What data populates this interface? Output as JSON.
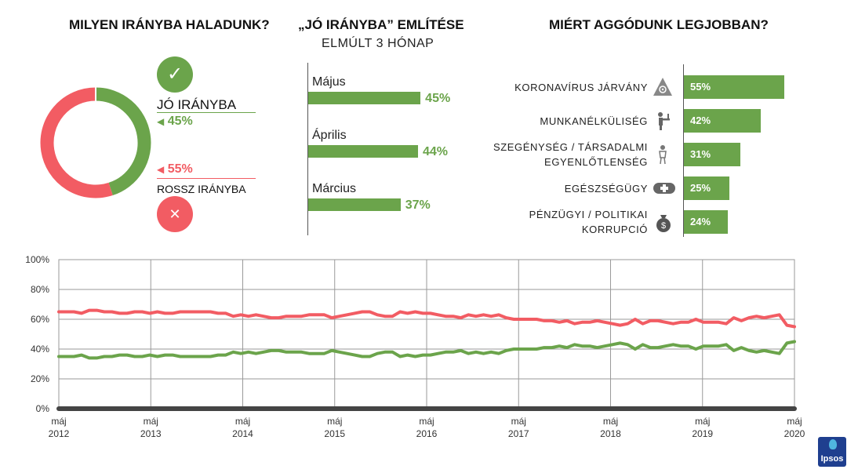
{
  "colors": {
    "green": "#6ba44b",
    "red": "#f25c63",
    "gray": "#8c8c8c"
  },
  "panel1": {
    "title": "MILYEN IRÁNYBA HALADUNK?",
    "good_label": "JÓ IRÁNYBA",
    "good_value": "45%",
    "bad_value": "55%",
    "bad_label": "ROSSZ IRÁNYBA",
    "check_icon": "✓",
    "x_icon": "✕"
  },
  "panel2": {
    "title": "„JÓ IRÁNYBA” EMLÍTÉSE",
    "subtitle": "ELMÚLT 3 HÓNAP"
  },
  "panel3": {
    "title": "MIÉRT AGGÓDUNK LEGJOBBAN?"
  },
  "footer": {
    "logo": "Ipsos"
  },
  "chart_data": [
    {
      "type": "pie",
      "title": "MILYEN IRÁNYBA HALADUNK?",
      "categories": [
        "JÓ IRÁNYBA",
        "ROSSZ IRÁNYBA"
      ],
      "values": [
        45,
        55
      ],
      "colors": [
        "#6ba44b",
        "#f25c63"
      ]
    },
    {
      "type": "bar",
      "orientation": "horizontal",
      "title": "„JÓ IRÁNYBA” EMLÍTÉSE",
      "subtitle": "ELMÚLT 3 HÓNAP",
      "categories": [
        "Május",
        "Április",
        "Március"
      ],
      "values": [
        45,
        44,
        37
      ],
      "value_labels": [
        "45%",
        "44%",
        "37%"
      ],
      "max": 55
    },
    {
      "type": "bar",
      "orientation": "horizontal",
      "title": "MIÉRT AGGÓDUNK LEGJOBBAN?",
      "categories": [
        [
          "KORONAVÍRUS JÁRVÁNY"
        ],
        [
          "MUNKANÉLKÜLISÉG"
        ],
        [
          "SZEGÉNYSÉG / TÁRSADALMI",
          "EGYENLŐTLENSÉG"
        ],
        [
          "EGÉSZSÉGÜGY"
        ],
        [
          "PÉNZÜGYI / POLITIKAI",
          "KORRUPCIÓ"
        ]
      ],
      "icons": [
        "biohazard-icon",
        "unemployed-person-icon",
        "poor-person-icon",
        "medical-cross-icon",
        "money-bag-icon"
      ],
      "values": [
        55,
        42,
        31,
        25,
        24
      ],
      "value_labels": [
        "55%",
        "42%",
        "31%",
        "25%",
        "24%"
      ],
      "max": 55
    },
    {
      "type": "line",
      "y_ticks": [
        "0%",
        "20%",
        "40%",
        "60%",
        "80%",
        "100%"
      ],
      "ylim": [
        0,
        100
      ],
      "grid": true,
      "x_ticks": [
        [
          "máj",
          "2012"
        ],
        [
          "máj",
          "2013"
        ],
        [
          "máj",
          "2014"
        ],
        [
          "máj",
          "2015"
        ],
        [
          "máj",
          "2016"
        ],
        [
          "máj",
          "2017"
        ],
        [
          "máj",
          "2018"
        ],
        [
          "máj",
          "2019"
        ],
        [
          "máj",
          "2020"
        ]
      ],
      "x_start": "2012-05",
      "x_end": "2020-05",
      "series": [
        {
          "color": "#f25c63",
          "values": [
            65,
            65,
            65,
            64,
            66,
            66,
            65,
            65,
            64,
            64,
            65,
            65,
            64,
            65,
            64,
            64,
            65,
            65,
            65,
            65,
            65,
            64,
            64,
            62,
            63,
            62,
            63,
            62,
            61,
            61,
            62,
            62,
            62,
            63,
            63,
            63,
            61,
            62,
            63,
            64,
            65,
            65,
            63,
            62,
            62,
            65,
            64,
            65,
            64,
            64,
            63,
            62,
            62,
            61,
            63,
            62,
            63,
            62,
            63,
            61,
            60,
            60,
            60,
            60,
            59,
            59,
            58,
            59,
            57,
            58,
            58,
            59,
            58,
            57,
            56,
            57,
            60,
            57,
            59,
            59,
            58,
            57,
            58,
            58,
            60,
            58,
            58,
            58,
            57,
            61,
            59,
            61,
            62,
            61,
            62,
            63,
            56,
            55
          ]
        },
        {
          "color": "#6ba44b",
          "values": [
            35,
            35,
            35,
            36,
            34,
            34,
            35,
            35,
            36,
            36,
            35,
            35,
            36,
            35,
            36,
            36,
            35,
            35,
            35,
            35,
            35,
            36,
            36,
            38,
            37,
            38,
            37,
            38,
            39,
            39,
            38,
            38,
            38,
            37,
            37,
            37,
            39,
            38,
            37,
            36,
            35,
            35,
            37,
            38,
            38,
            35,
            36,
            35,
            36,
            36,
            37,
            38,
            38,
            39,
            37,
            38,
            37,
            38,
            37,
            39,
            40,
            40,
            40,
            40,
            41,
            41,
            42,
            41,
            43,
            42,
            42,
            41,
            42,
            43,
            44,
            43,
            40,
            43,
            41,
            41,
            42,
            43,
            42,
            42,
            40,
            42,
            42,
            42,
            43,
            39,
            41,
            39,
            38,
            39,
            38,
            37,
            44,
            45
          ]
        }
      ]
    }
  ]
}
